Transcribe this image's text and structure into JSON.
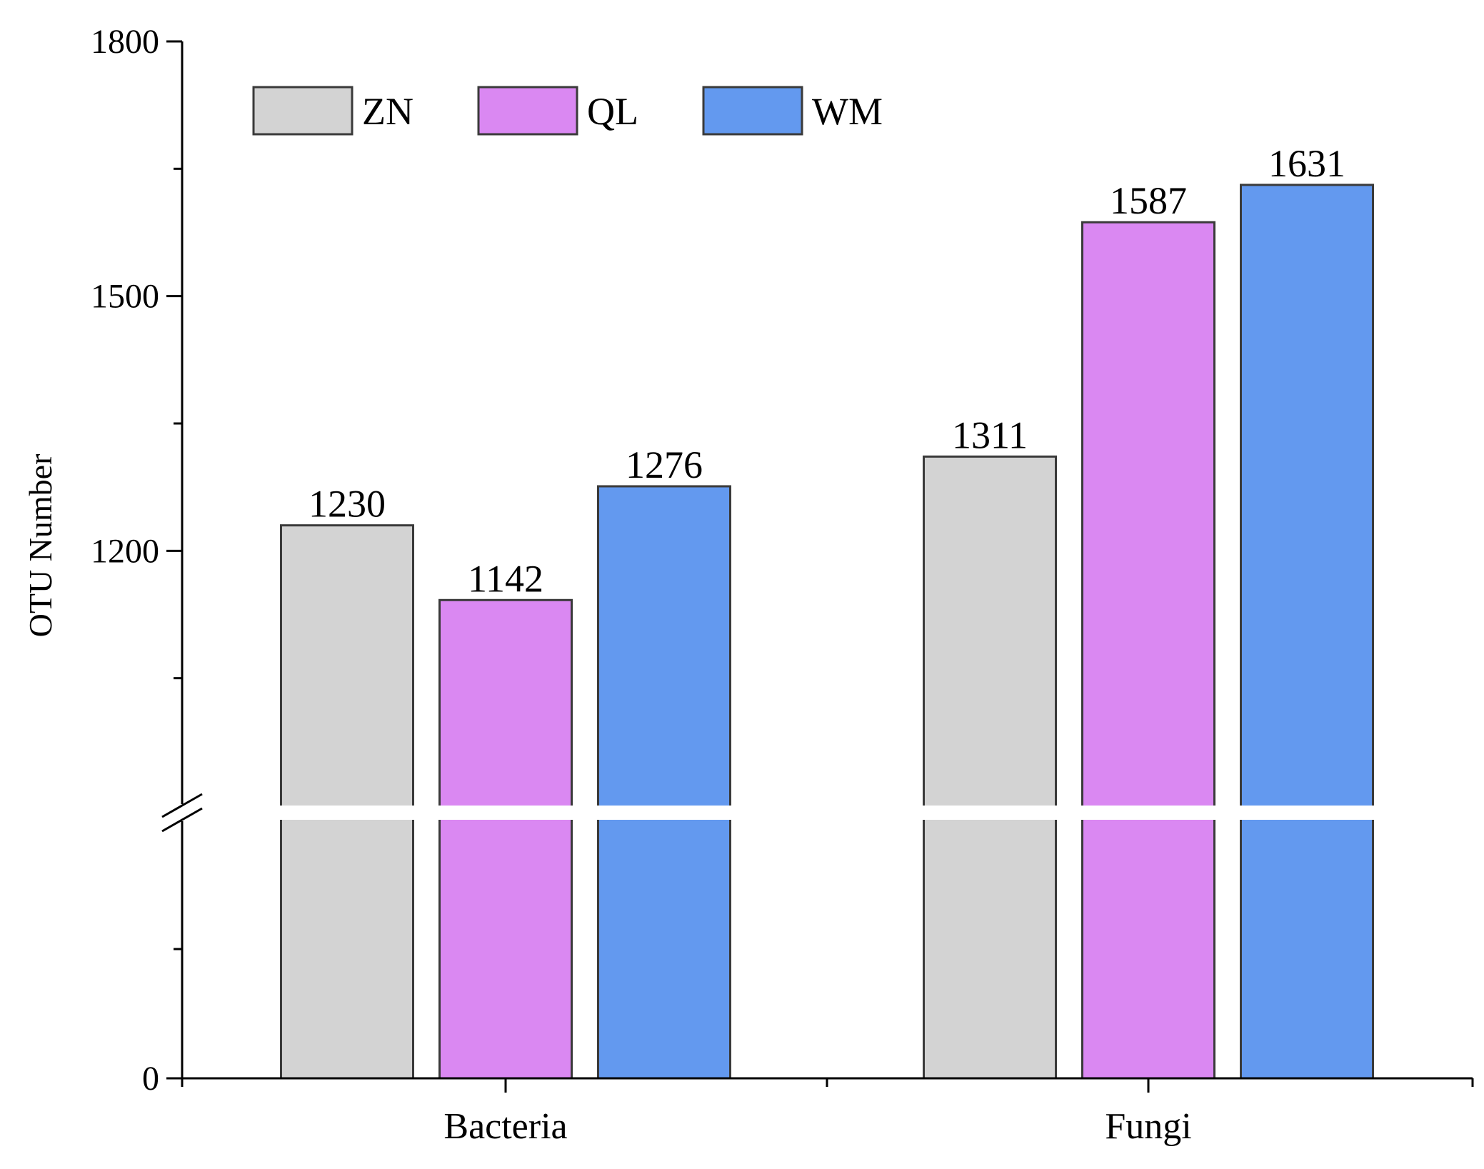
{
  "chart_data": {
    "type": "bar",
    "title": "",
    "xlabel": "",
    "ylabel": "OTU Number",
    "categories": [
      "Bacteria",
      "Fungi"
    ],
    "series": [
      {
        "name": "ZN",
        "color": "#d3d3d3",
        "values": [
          1230,
          1311
        ]
      },
      {
        "name": "QL",
        "color": "#da88f2",
        "values": [
          1142,
          1587
        ]
      },
      {
        "name": "WM",
        "color": "#6399ef",
        "values": [
          1276,
          1631
        ]
      }
    ],
    "y_axis": {
      "broken": true,
      "lower_range": [
        0,
        1000
      ],
      "upper_range": [
        900,
        1800
      ],
      "tick_labels": [
        "0",
        "1200",
        "1500",
        "1800"
      ]
    },
    "legend_position": "top-left",
    "data_labels": true
  }
}
